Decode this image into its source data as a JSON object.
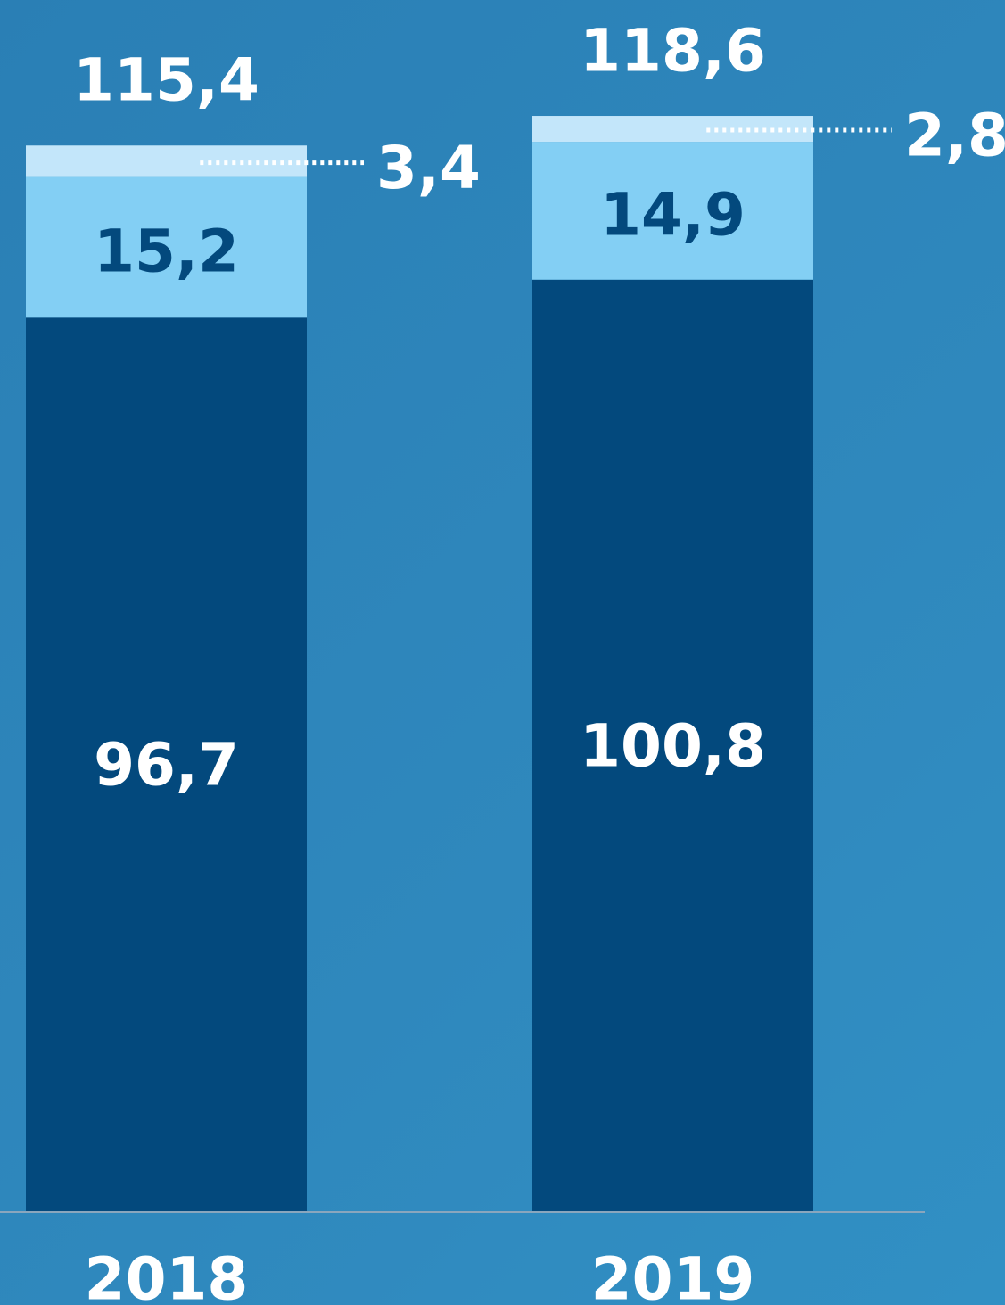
{
  "chart_data": {
    "type": "bar",
    "stacked": true,
    "categories": [
      "2018",
      "2019"
    ],
    "series": [
      {
        "values": [
          96.7,
          100.8
        ],
        "labels": [
          "96,7",
          "100,8"
        ],
        "color": "#03497d",
        "label_color": "#ffffff"
      },
      {
        "values": [
          15.2,
          14.9
        ],
        "labels": [
          "15,2",
          "14,9"
        ],
        "color": "#83cff4",
        "label_color": "#03497d"
      },
      {
        "values": [
          3.4,
          2.8
        ],
        "labels": [
          "3,4",
          "2,8"
        ],
        "color": "#c3e6fa",
        "label_color": "#ffffff"
      }
    ],
    "totals": [
      115.4,
      118.6
    ],
    "total_labels": [
      "115,4",
      "118,6"
    ],
    "ylim": [
      0,
      118.6
    ],
    "grid": false,
    "legend": "none"
  },
  "colors": {
    "background": "#2c84b9",
    "axis_line": "#8aa6bd",
    "text_light": "#ffffff"
  }
}
